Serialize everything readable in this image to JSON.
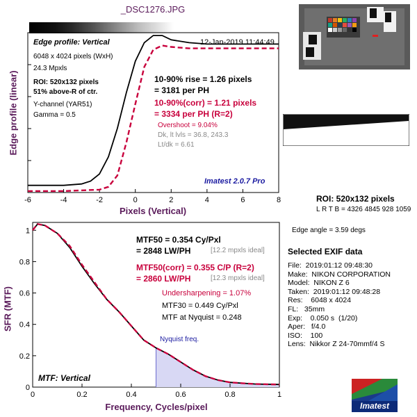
{
  "file_title": "_DSC1276.JPG",
  "top_panel": {
    "heading": "Edge profile: Vertical",
    "timestamp": "12-Jan-2019 11:44:49",
    "dims": "6048 x 4024 pixels (WxH)",
    "mpxls": "24.3 Mpxls",
    "roi": "ROI: 520x132 pixels",
    "above_r": "51% above-R of ctr.",
    "channel": "Y-channel  (YAR51)",
    "gamma": "Gamma = 0.5",
    "rise_line1": "10-90% rise = 1.26 pixels",
    "rise_line2": "= 3181 per PH",
    "corr_line1": "10-90%(corr) = 1.21 pixels",
    "corr_line2": "= 3334 per PH  (R=2)",
    "overshoot": "Overshoot = 9.04%",
    "levels": "Dk, lt lvls = 36.8, 243.3",
    "ltdk": "Lt/dk = 6.61",
    "brand": "Imatest 2.0.7 Pro",
    "ylabel": "Edge profile (linear)",
    "xlabel": "Pixels (Vertical)"
  },
  "bottom_panel": {
    "mtf50_line1": "MTF50 = 0.354 Cy/Pxl",
    "mtf50_line2": "= 2848 LW/PH",
    "mtf50_ideal": "[12.2 mpxls ideal]",
    "mtf50c_line1": "MTF50(corr) = 0.355 C/P  (R=2)",
    "mtf50c_line2": "= 2860 LW/PH",
    "mtf50c_ideal": "[12.3 mpxls ideal]",
    "undersharp": "Undersharpening = 1.07%",
    "mtf30": "MTF30 = 0.449 Cy/Pxl",
    "nyq_mtf": "MTF at Nyquist = 0.248",
    "nyq_label": "Nyquist freq.",
    "heading": "MTF: Vertical",
    "ylabel": "SFR (MTF)",
    "xlabel": "Frequency, Cycles/pixel"
  },
  "right_panel": {
    "roi_title": "ROI: 520x132 pixels",
    "lrtb": "L R  T B = 4326 4845  928 1059",
    "edge_angle": "Edge angle = 3.59 degs",
    "exif_title": "Selected EXIF data",
    "exif_lines": [
      "File:  2019:01:12 09:48:30",
      "Make:  NIKON CORPORATION",
      "Model:  NIKON Z 6",
      "Taken:  2019:01:12 09:48:28",
      "Res:    6048 x 4024",
      "FL:   35mm",
      "Exp:    0.050 s  (1/20)",
      "Aper:   f/4.0",
      "ISO:    100",
      "Lens:  Nikkor Z 24-70mmf/4 S"
    ],
    "logo_text": "Imatest"
  },
  "chart_data": [
    {
      "type": "line",
      "title": "Edge profile: Vertical",
      "xlabel": "Pixels (Vertical)",
      "ylabel": "Edge profile (linear)",
      "xlim": [
        -6,
        8
      ],
      "ylim": [
        0,
        1.12
      ],
      "x_ticks": [
        -6,
        -4,
        -2,
        0,
        2,
        4,
        6,
        8
      ],
      "grid": false,
      "series": [
        {
          "name": "",
          "color": "#000000",
          "style": "solid",
          "x": [
            -6,
            -5,
            -4,
            -3,
            -2.5,
            -2,
            -1.5,
            -1,
            -0.5,
            0,
            0.5,
            1,
            1.5,
            2,
            3,
            4,
            5,
            6,
            7,
            8
          ],
          "y": [
            0.05,
            0.05,
            0.05,
            0.06,
            0.08,
            0.13,
            0.25,
            0.45,
            0.7,
            0.92,
            1.05,
            1.1,
            1.1,
            1.07,
            1.05,
            1.04,
            1.04,
            1.04,
            1.04,
            1.04
          ]
        },
        {
          "name": "",
          "color": "#c8003c",
          "style": "dashed",
          "x": [
            -6,
            -4,
            -2,
            -1.5,
            -1,
            -0.5,
            0,
            0.5,
            1,
            1.5,
            2,
            3,
            4,
            5,
            6,
            7,
            8
          ],
          "y": [
            0.01,
            0.01,
            0.02,
            0.04,
            0.12,
            0.35,
            0.62,
            0.88,
            1.0,
            1.03,
            1.02,
            1.01,
            1.01,
            1.01,
            1.01,
            1.01,
            1.01
          ]
        }
      ]
    },
    {
      "type": "line",
      "title": "MTF: Vertical",
      "xlabel": "Frequency, Cycles/pixel",
      "ylabel": "SFR (MTF)",
      "xlim": [
        0,
        1
      ],
      "ylim": [
        0,
        1.05
      ],
      "x_ticks": [
        0,
        0.2,
        0.4,
        0.6,
        0.8,
        1
      ],
      "y_ticks": [
        0,
        0.2,
        0.4,
        0.6,
        0.8,
        1
      ],
      "grid": false,
      "nyquist_x": 0.5,
      "series": [
        {
          "name": "",
          "color": "#000000",
          "style": "solid",
          "x": [
            0,
            0.02,
            0.05,
            0.1,
            0.15,
            0.2,
            0.25,
            0.3,
            0.35,
            0.4,
            0.45,
            0.5,
            0.55,
            0.6,
            0.65,
            0.7,
            0.75,
            0.8,
            0.85,
            0.9,
            0.95,
            1.0
          ],
          "y": [
            1.0,
            1.04,
            1.03,
            0.98,
            0.89,
            0.77,
            0.66,
            0.56,
            0.48,
            0.39,
            0.3,
            0.25,
            0.21,
            0.16,
            0.11,
            0.07,
            0.045,
            0.03,
            0.025,
            0.02,
            0.018,
            0.017
          ]
        },
        {
          "name": "",
          "color": "#c8003c",
          "style": "dashed",
          "x": [
            0,
            0.02,
            0.05,
            0.1,
            0.15,
            0.2,
            0.25,
            0.3,
            0.35,
            0.4,
            0.45,
            0.5,
            0.55,
            0.6,
            0.65,
            0.7,
            0.75,
            0.8,
            0.85,
            0.9,
            0.95,
            1.0
          ],
          "y": [
            1.0,
            1.04,
            1.03,
            0.98,
            0.9,
            0.78,
            0.67,
            0.56,
            0.48,
            0.39,
            0.3,
            0.25,
            0.21,
            0.16,
            0.11,
            0.07,
            0.045,
            0.03,
            0.025,
            0.02,
            0.018,
            0.017
          ]
        }
      ]
    }
  ]
}
